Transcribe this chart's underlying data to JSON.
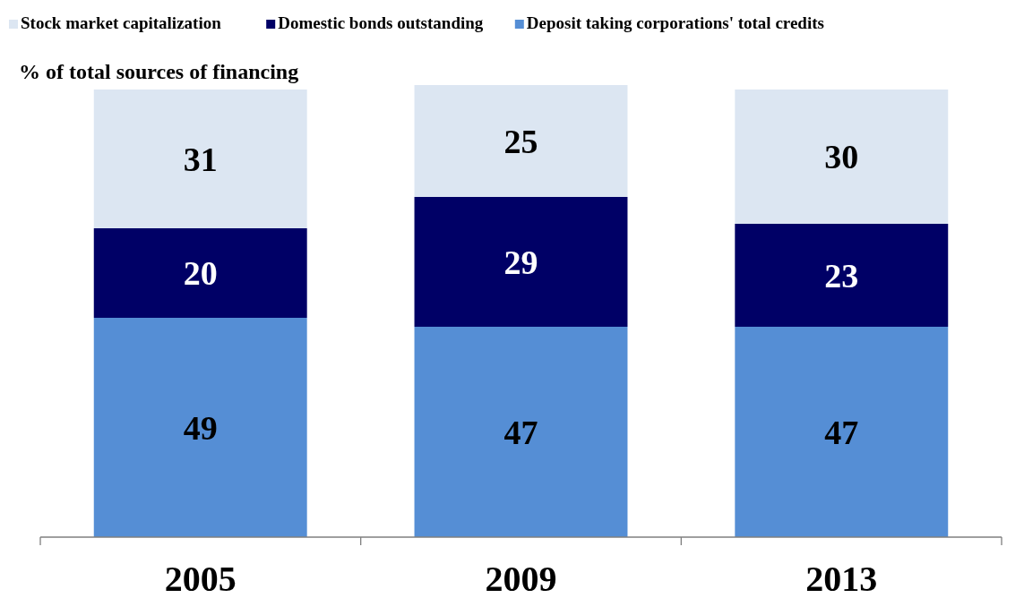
{
  "chart_data": {
    "type": "bar",
    "stacked": true,
    "ylabel": "% of total sources of financing",
    "categories": [
      "2005",
      "2009",
      "2013"
    ],
    "series": [
      {
        "name": "Deposit taking corporations' total credits",
        "color": "#558ed5",
        "values": [
          49,
          47,
          47
        ]
      },
      {
        "name": "Domestic bonds outstanding",
        "color": "#000066",
        "values": [
          20,
          29,
          23
        ]
      },
      {
        "name": "Stock market capitalization",
        "color": "#dce6f2",
        "values": [
          31,
          25,
          30
        ]
      }
    ],
    "data_labels": true,
    "legend": "top left"
  }
}
